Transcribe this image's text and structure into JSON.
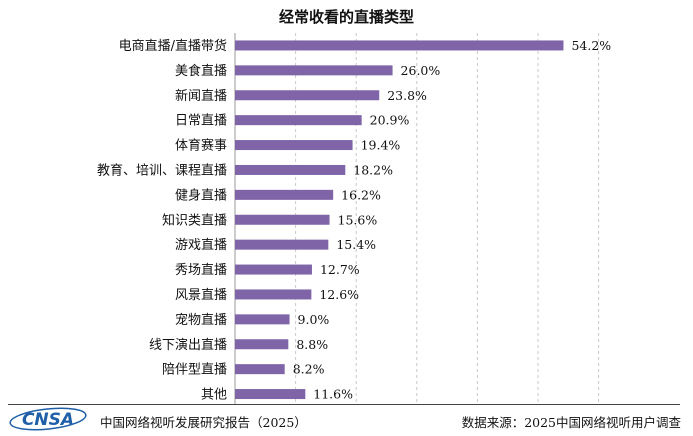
{
  "chart_data": {
    "type": "bar",
    "orientation": "horizontal",
    "title": "经常收看的直播类型",
    "categories": [
      "电商直播/直播带货",
      "美食直播",
      "新闻直播",
      "日常直播",
      "体育赛事",
      "教育、培训、课程直播",
      "健身直播",
      "知识类直播",
      "游戏直播",
      "秀场直播",
      "风景直播",
      "宠物直播",
      "线下演出直播",
      "陪伴型直播",
      "其他"
    ],
    "values": [
      54.2,
      26.0,
      23.8,
      20.9,
      19.4,
      18.2,
      16.2,
      15.6,
      15.4,
      12.7,
      12.6,
      9.0,
      8.8,
      8.2,
      11.6
    ],
    "value_labels": [
      "54.2%",
      "26.0%",
      "23.8%",
      "20.9%",
      "19.4%",
      "18.2%",
      "16.2%",
      "15.6%",
      "15.4%",
      "12.7%",
      "12.6%",
      "9.0%",
      "8.8%",
      "8.2%",
      "11.6%"
    ],
    "unit": "%",
    "xlim": [
      0,
      60
    ],
    "grid": "vertical dashed",
    "bar_color": "#7f64a8"
  },
  "footer": {
    "logo_text": "CNSA",
    "report": "中国网络视听发展研究报告（2025）",
    "source": "数据来源：2025中国网络视听用户调查"
  }
}
